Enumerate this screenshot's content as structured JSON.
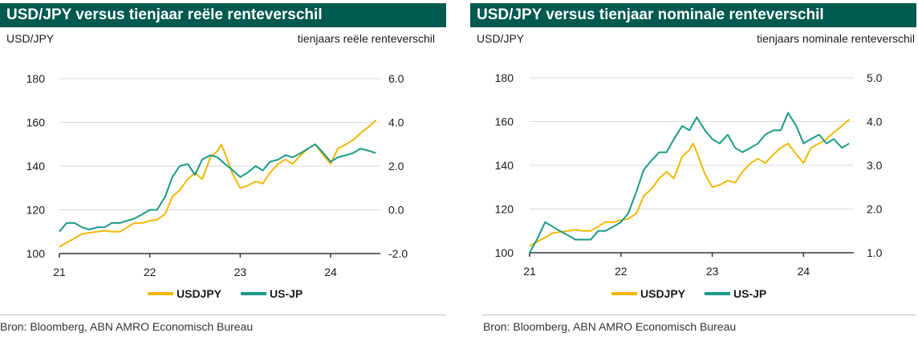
{
  "source": "Bron: Bloomberg, ABN AMRO Economisch Bureau",
  "chart_data": [
    {
      "type": "line",
      "title": "USD/JPY versus tienjaar reële renteverschil",
      "left_axis_label": "USD/JPY",
      "right_axis_label": "tienjaars reële renteverschil",
      "x_ticks": [
        "21",
        "22",
        "23",
        "24"
      ],
      "x_range": [
        2021.0,
        2024.55
      ],
      "y_left_range": [
        100,
        180
      ],
      "y_left_ticks": [
        "100",
        "120",
        "140",
        "160",
        "180"
      ],
      "y_right_range": [
        -2.0,
        6.0
      ],
      "y_right_ticks": [
        "-2.0",
        "0.0",
        "2.0",
        "4.0",
        "6.0"
      ],
      "series": [
        {
          "name": "USDJPY",
          "axis": "left",
          "color": "#f2b705",
          "x": [
            2021.0,
            2021.08,
            2021.17,
            2021.25,
            2021.33,
            2021.42,
            2021.5,
            2021.58,
            2021.67,
            2021.75,
            2021.83,
            2021.92,
            2022.0,
            2022.08,
            2022.17,
            2022.25,
            2022.33,
            2022.42,
            2022.5,
            2022.58,
            2022.67,
            2022.75,
            2022.79,
            2022.83,
            2022.92,
            2023.0,
            2023.08,
            2023.17,
            2023.25,
            2023.33,
            2023.42,
            2023.5,
            2023.58,
            2023.67,
            2023.75,
            2023.83,
            2023.92,
            2024.0,
            2024.08,
            2024.17,
            2024.25,
            2024.33,
            2024.42,
            2024.5
          ],
          "values": [
            103,
            105,
            107,
            109,
            109.5,
            110,
            110.5,
            110,
            110,
            112,
            114,
            114,
            115,
            115.5,
            118,
            126,
            129,
            134,
            137,
            134,
            144,
            147,
            150,
            146,
            136,
            130,
            131,
            133,
            132,
            137,
            141,
            143,
            141,
            145,
            148,
            150,
            145,
            141,
            148,
            150,
            152,
            155,
            158,
            161
          ]
        },
        {
          "name": "US-JP",
          "axis": "right",
          "color": "#1a9a86",
          "x": [
            2021.0,
            2021.08,
            2021.17,
            2021.25,
            2021.33,
            2021.42,
            2021.5,
            2021.58,
            2021.67,
            2021.75,
            2021.83,
            2021.92,
            2022.0,
            2022.08,
            2022.17,
            2022.25,
            2022.33,
            2022.42,
            2022.5,
            2022.58,
            2022.67,
            2022.75,
            2022.83,
            2022.92,
            2023.0,
            2023.08,
            2023.17,
            2023.25,
            2023.33,
            2023.42,
            2023.5,
            2023.58,
            2023.67,
            2023.75,
            2023.83,
            2023.92,
            2024.0,
            2024.08,
            2024.17,
            2024.25,
            2024.33,
            2024.42,
            2024.5
          ],
          "values": [
            -1.0,
            -0.6,
            -0.6,
            -0.8,
            -0.9,
            -0.8,
            -0.8,
            -0.6,
            -0.6,
            -0.5,
            -0.4,
            -0.2,
            0.0,
            0.0,
            0.6,
            1.5,
            2.0,
            2.1,
            1.6,
            2.3,
            2.5,
            2.4,
            2.1,
            1.8,
            1.5,
            1.7,
            2.0,
            1.8,
            2.2,
            2.3,
            2.5,
            2.4,
            2.6,
            2.8,
            3.0,
            2.6,
            2.2,
            2.4,
            2.5,
            2.6,
            2.8,
            2.7,
            2.6
          ]
        }
      ]
    },
    {
      "type": "line",
      "title": "USD/JPY versus tienjaar nominale renteverschil",
      "left_axis_label": "USD/JPY",
      "right_axis_label": "tienjaars nominale renteverschil",
      "x_ticks": [
        "21",
        "22",
        "23",
        "24"
      ],
      "x_range": [
        2021.0,
        2024.55
      ],
      "y_left_range": [
        100,
        180
      ],
      "y_left_ticks": [
        "100",
        "120",
        "140",
        "160",
        "180"
      ],
      "y_right_range": [
        1.0,
        5.0
      ],
      "y_right_ticks": [
        "1.0",
        "2.0",
        "3.0",
        "4.0",
        "5.0"
      ],
      "series": [
        {
          "name": "USDJPY",
          "axis": "left",
          "color": "#f2b705",
          "x": [
            2021.0,
            2021.08,
            2021.17,
            2021.25,
            2021.33,
            2021.42,
            2021.5,
            2021.58,
            2021.67,
            2021.75,
            2021.83,
            2021.92,
            2022.0,
            2022.08,
            2022.17,
            2022.25,
            2022.33,
            2022.42,
            2022.5,
            2022.58,
            2022.67,
            2022.75,
            2022.79,
            2022.83,
            2022.92,
            2023.0,
            2023.08,
            2023.17,
            2023.25,
            2023.33,
            2023.42,
            2023.5,
            2023.58,
            2023.67,
            2023.75,
            2023.83,
            2023.92,
            2024.0,
            2024.08,
            2024.17,
            2024.25,
            2024.33,
            2024.42,
            2024.5
          ],
          "values": [
            103,
            105,
            107,
            109,
            109.5,
            110,
            110.5,
            110,
            110,
            112,
            114,
            114,
            115,
            115.5,
            118,
            126,
            129,
            134,
            137,
            134,
            144,
            147,
            150,
            146,
            136,
            130,
            131,
            133,
            132,
            137,
            141,
            143,
            141,
            145,
            148,
            150,
            145,
            141,
            148,
            150,
            152,
            155,
            158,
            161
          ]
        },
        {
          "name": "US-JP",
          "axis": "right",
          "color": "#1a9a86",
          "x": [
            2021.0,
            2021.08,
            2021.17,
            2021.25,
            2021.33,
            2021.42,
            2021.5,
            2021.58,
            2021.67,
            2021.75,
            2021.83,
            2021.92,
            2022.0,
            2022.08,
            2022.17,
            2022.25,
            2022.33,
            2022.42,
            2022.5,
            2022.58,
            2022.67,
            2022.75,
            2022.83,
            2022.92,
            2023.0,
            2023.08,
            2023.17,
            2023.25,
            2023.33,
            2023.42,
            2023.5,
            2023.58,
            2023.67,
            2023.75,
            2023.83,
            2023.92,
            2024.0,
            2024.08,
            2024.17,
            2024.25,
            2024.33,
            2024.42,
            2024.5
          ],
          "values": [
            1.0,
            1.3,
            1.7,
            1.6,
            1.5,
            1.4,
            1.3,
            1.3,
            1.3,
            1.5,
            1.5,
            1.6,
            1.7,
            1.9,
            2.4,
            2.9,
            3.1,
            3.3,
            3.3,
            3.6,
            3.9,
            3.8,
            4.1,
            3.8,
            3.6,
            3.5,
            3.7,
            3.4,
            3.3,
            3.4,
            3.5,
            3.7,
            3.8,
            3.8,
            4.2,
            3.9,
            3.5,
            3.6,
            3.7,
            3.5,
            3.6,
            3.4,
            3.5
          ]
        }
      ]
    }
  ]
}
